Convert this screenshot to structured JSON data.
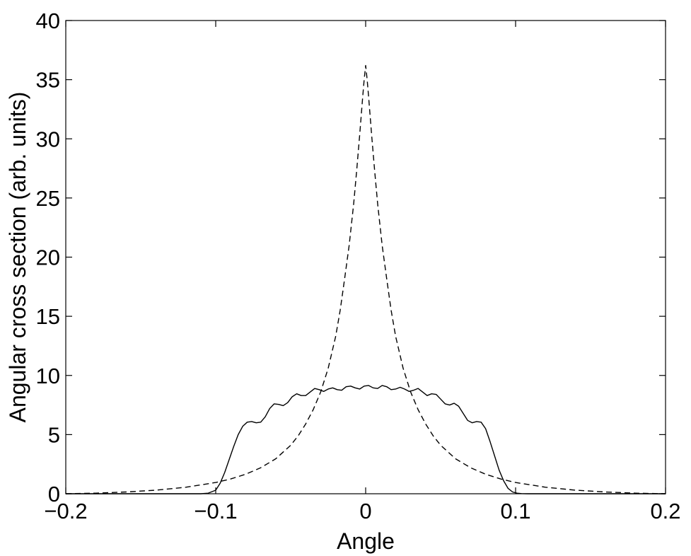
{
  "chart_data": {
    "type": "line",
    "title": "",
    "xlabel": "Angle",
    "ylabel": "Angular cross section (arb. units)",
    "xlim": [
      -0.2,
      0.2
    ],
    "ylim": [
      0,
      40
    ],
    "x_ticks": [
      -0.2,
      -0.1,
      0,
      0.1,
      0.2
    ],
    "x_tick_labels": [
      "−0.2",
      "−0.1",
      "0",
      "0.1",
      "0.2"
    ],
    "y_ticks": [
      0,
      5,
      10,
      15,
      20,
      25,
      30,
      35,
      40
    ],
    "y_tick_labels": [
      "0",
      "5",
      "10",
      "15",
      "20",
      "25",
      "30",
      "35",
      "40"
    ],
    "grid": false,
    "legend": "none",
    "series": [
      {
        "style": "solid",
        "color": "#000000",
        "x": [
          -0.2,
          -0.11,
          -0.105,
          -0.1,
          -0.097,
          -0.094,
          -0.091,
          -0.088,
          -0.085,
          -0.082,
          -0.079,
          -0.076,
          -0.073,
          -0.07,
          -0.067,
          -0.064,
          -0.061,
          -0.058,
          -0.055,
          -0.052,
          -0.049,
          -0.046,
          -0.043,
          -0.04,
          -0.037,
          -0.034,
          -0.031,
          -0.028,
          -0.025,
          -0.022,
          -0.019,
          -0.016,
          -0.013,
          -0.01,
          -0.007,
          -0.004,
          -0.001,
          0.002,
          0.005,
          0.008,
          0.011,
          0.014,
          0.017,
          0.02,
          0.023,
          0.026,
          0.029,
          0.032,
          0.035,
          0.038,
          0.041,
          0.044,
          0.047,
          0.05,
          0.053,
          0.056,
          0.059,
          0.062,
          0.065,
          0.068,
          0.071,
          0.074,
          0.077,
          0.08,
          0.083,
          0.086,
          0.089,
          0.092,
          0.095,
          0.098,
          0.101,
          0.104,
          0.108,
          0.112,
          0.2
        ],
        "y": [
          0,
          0,
          0.05,
          0.3,
          0.9,
          1.8,
          2.9,
          4.0,
          5.0,
          5.7,
          6.05,
          6.1,
          6.0,
          6.05,
          6.5,
          7.2,
          7.6,
          7.55,
          7.45,
          7.7,
          8.2,
          8.45,
          8.3,
          8.3,
          8.6,
          8.9,
          8.8,
          8.65,
          8.85,
          8.95,
          8.8,
          8.75,
          9.05,
          9.1,
          8.95,
          8.85,
          9.1,
          9.15,
          8.95,
          8.9,
          9.15,
          9.05,
          8.8,
          8.85,
          9.0,
          8.85,
          8.65,
          8.75,
          8.9,
          8.6,
          8.3,
          8.45,
          8.4,
          8.0,
          7.6,
          7.5,
          7.65,
          7.4,
          6.8,
          6.2,
          6.0,
          6.1,
          6.05,
          5.5,
          4.4,
          3.2,
          2.0,
          1.1,
          0.45,
          0.15,
          0.05,
          0.01,
          0,
          0,
          0
        ]
      },
      {
        "style": "dashed",
        "color": "#000000",
        "x": [
          -0.2,
          -0.18,
          -0.16,
          -0.14,
          -0.12,
          -0.1,
          -0.09,
          -0.08,
          -0.07,
          -0.06,
          -0.05,
          -0.045,
          -0.04,
          -0.035,
          -0.03,
          -0.025,
          -0.02,
          -0.017,
          -0.014,
          -0.011,
          -0.008,
          -0.006,
          -0.004,
          -0.002,
          -0.001,
          0,
          0.001,
          0.002,
          0.004,
          0.006,
          0.008,
          0.011,
          0.014,
          0.017,
          0.02,
          0.025,
          0.03,
          0.035,
          0.04,
          0.045,
          0.05,
          0.06,
          0.07,
          0.08,
          0.09,
          0.1,
          0.12,
          0.14,
          0.16,
          0.18,
          0.2
        ],
        "y": [
          0.0,
          0.05,
          0.15,
          0.3,
          0.55,
          0.95,
          1.25,
          1.65,
          2.2,
          2.95,
          4.1,
          4.9,
          5.9,
          7.1,
          8.6,
          10.6,
          13.3,
          15.5,
          18.2,
          21.0,
          24.5,
          27.3,
          30.3,
          33.5,
          35.0,
          36.2,
          35.0,
          33.5,
          30.3,
          27.3,
          24.5,
          21.0,
          18.2,
          15.5,
          13.3,
          10.6,
          8.6,
          7.1,
          5.9,
          4.9,
          4.1,
          2.95,
          2.2,
          1.65,
          1.25,
          0.95,
          0.55,
          0.3,
          0.15,
          0.05,
          0.0
        ]
      }
    ]
  }
}
